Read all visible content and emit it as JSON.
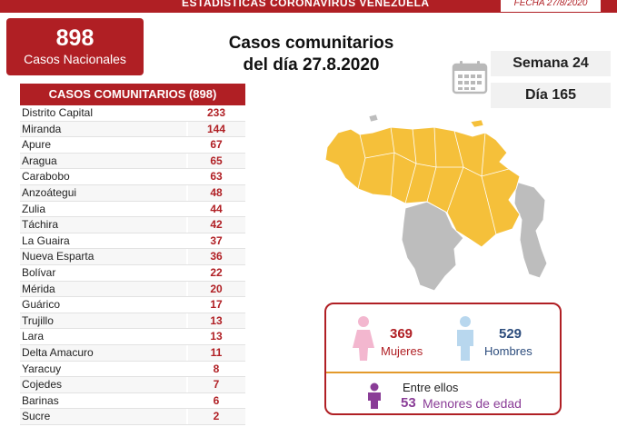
{
  "header": {
    "title": "ESTADÍSTICAS CORONAVIRUS VENEZUELA",
    "date": "FECHA 27/8/2020"
  },
  "national": {
    "value": "898",
    "label": "Casos Nacionales"
  },
  "main_title": {
    "line1": "Casos comunitarios",
    "line2": "del día 27.8.2020"
  },
  "calendar": {
    "semana": "Semana 24",
    "dia": "Día 165"
  },
  "table": {
    "header": "CASOS COMUNITARIOS (898)",
    "rows": [
      {
        "name": "Distrito Capital",
        "value": "233"
      },
      {
        "name": "Miranda",
        "value": "144"
      },
      {
        "name": "Apure",
        "value": "67"
      },
      {
        "name": "Aragua",
        "value": "65"
      },
      {
        "name": "Carabobo",
        "value": "63"
      },
      {
        "name": "Anzoátegui",
        "value": "48"
      },
      {
        "name": "Zulia",
        "value": "44"
      },
      {
        "name": "Táchira",
        "value": "42"
      },
      {
        "name": "La Guaira",
        "value": "37"
      },
      {
        "name": "Nueva Esparta",
        "value": "36"
      },
      {
        "name": "Bolívar",
        "value": "22"
      },
      {
        "name": "Mérida",
        "value": "20"
      },
      {
        "name": "Guárico",
        "value": "17"
      },
      {
        "name": "Trujillo",
        "value": "13"
      },
      {
        "name": "Lara",
        "value": "13"
      },
      {
        "name": "Delta Amacuro",
        "value": "11"
      },
      {
        "name": "Yaracuy",
        "value": "8"
      },
      {
        "name": "Cojedes",
        "value": "7"
      },
      {
        "name": "Barinas",
        "value": "6"
      },
      {
        "name": "Sucre",
        "value": "2"
      }
    ]
  },
  "gender": {
    "women_value": "369",
    "women_label": "Mujeres",
    "men_value": "529",
    "men_label": "Hombres",
    "minors_prefix": "Entre ellos",
    "minors_value": "53",
    "minors_label": "Menores de edad"
  },
  "colors": {
    "brand_red": "#b01f24",
    "map_yellow": "#f5c03a",
    "map_gray": "#bdbdbd",
    "women_pink": "#f3b7cf",
    "men_blue": "#b8d7ee",
    "minors_purple": "#8a3d97"
  },
  "icons": [
    "calendar-icon",
    "woman-icon",
    "man-icon",
    "child-icon"
  ]
}
